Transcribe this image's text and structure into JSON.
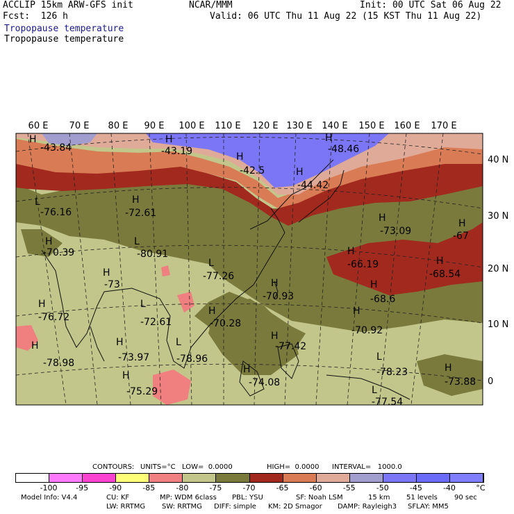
{
  "header": {
    "model": "ACCLIP 15km ARW-GFS init",
    "forecast": "Fcst:  126 h",
    "center": "NCAR/MMM",
    "init": "Init: 00 UTC Sat 06 Aug 22",
    "valid": "Valid: 06 UTC Thu 11 Aug 22 (15 KST Thu 11 Aug 22)",
    "field_line1": "Tropopause temperature",
    "field_line2": "Tropopause temperature"
  },
  "map": {
    "lon_labels": [
      "60 E",
      "70 E",
      "80 E",
      "90 E",
      "100 E",
      "110 E",
      "120 E",
      "130 E",
      "140 E",
      "150 E",
      "160 E",
      "170 E"
    ],
    "lat_labels": [
      "40 N",
      "30 N",
      "20 N",
      "10 N",
      "0"
    ],
    "highs_lows": [
      {
        "type": "H",
        "value": "-43.84"
      },
      {
        "type": "H",
        "value": "-43.19"
      },
      {
        "type": "H",
        "value": "-48.46"
      },
      {
        "type": "H",
        "value": "-42.5"
      },
      {
        "type": "H",
        "value": "-44.42"
      },
      {
        "type": "L",
        "value": "-76.16"
      },
      {
        "type": "H",
        "value": "-72.61"
      },
      {
        "type": "H",
        "value": "-70.39"
      },
      {
        "type": "L",
        "value": "-80.91"
      },
      {
        "type": "L",
        "value": "-77.26"
      },
      {
        "type": "H",
        "value": "-73.09"
      },
      {
        "type": "H",
        "value": "-67"
      },
      {
        "type": "H",
        "value": "-66.19"
      },
      {
        "type": "H",
        "value": "-68.54"
      },
      {
        "type": "H",
        "value": "-73"
      },
      {
        "type": "H",
        "value": "-70.93"
      },
      {
        "type": "H",
        "value": "-68.6"
      },
      {
        "type": "H",
        "value": "-76.72"
      },
      {
        "type": "L",
        "value": "-72.61"
      },
      {
        "type": "H",
        "value": "-70.28"
      },
      {
        "type": "H",
        "value": "-70.92"
      },
      {
        "type": "H",
        "value": "-78.98"
      },
      {
        "type": "H",
        "value": "-73.97"
      },
      {
        "type": "L",
        "value": "-78.96"
      },
      {
        "type": "H",
        "value": "-77.42"
      },
      {
        "type": "L",
        "value": "-78.23"
      },
      {
        "type": "H",
        "value": "-73.88"
      },
      {
        "type": "H",
        "value": "-75.29"
      },
      {
        "type": "H",
        "value": "-74.08"
      },
      {
        "type": "L",
        "value": "-77.54"
      }
    ]
  },
  "contour_info": {
    "contours": "CONTOURS:",
    "units": "UNITS=°C",
    "low": "LOW=  0.0000",
    "high": "HIGH=  0.0000",
    "interval": "INTERVAL=   1000.0"
  },
  "colorbar": {
    "colors": [
      "#ffffff",
      "#ff7aff",
      "#ff42d0",
      "#ffff7a",
      "#f08080",
      "#c2c68a",
      "#7a7a3c",
      "#a1291e",
      "#d97b54",
      "#e0aa99",
      "#a19ecf",
      "#7b76f5",
      "#6b6bfb",
      "#7e7efe"
    ],
    "labels": [
      "-100",
      "-95",
      "-90",
      "-85",
      "-80",
      "-75",
      "-70",
      "-65",
      "-60",
      "-55",
      "-50",
      "-45",
      "-40"
    ],
    "unit": "°C"
  },
  "footer": {
    "line1": [
      "Model Info: V4.4",
      "CU: KF",
      "MP: WDM 6class",
      "PBL: YSU",
      "SF: Noah LSM",
      "15 km",
      "51 levels",
      "90 sec"
    ],
    "line2": [
      "LW: RRTMG",
      "SW: RRTMG",
      "DIFF: simple",
      "KM: 2D Smagor",
      "DAMP: Rayleigh3",
      "SFLAY: MM5"
    ]
  }
}
